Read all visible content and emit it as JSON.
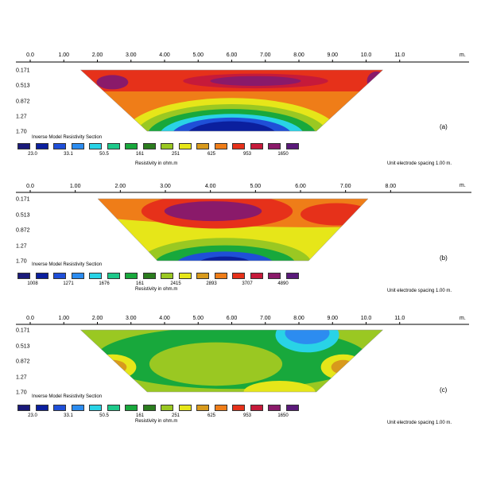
{
  "chart_data": [
    {
      "type": "heatmap",
      "panel_label": "(a)",
      "section_title": "Inverse Model Resistivity Section",
      "x_unit": "m.",
      "x_ticks": [
        "0.0",
        "1.00",
        "2.00",
        "3.00",
        "4.00",
        "5.00",
        "6.00",
        "7.00",
        "8.00",
        "9.00",
        "10.0",
        "11.0"
      ],
      "x_range": [
        0,
        12
      ],
      "section_x": [
        1.5,
        10.5
      ],
      "depth_ticks": [
        "0.171",
        "0.513",
        "0.872",
        "1.27",
        "1.70"
      ],
      "legend_values": [
        "23.0",
        "33.1",
        "50.5",
        "161",
        "251",
        "625",
        "953",
        "1650"
      ],
      "legend_caption": "Resistivity in ohm.m",
      "spacing_note": "Unit electrode spacing 1.00 m."
    },
    {
      "type": "heatmap",
      "panel_label": "(b)",
      "section_title": "Inverse Model Resistivity Section",
      "x_unit": "m.",
      "x_ticks": [
        "0.0",
        "1.00",
        "2.00",
        "3.00",
        "4.00",
        "5.00",
        "6.00",
        "7.00",
        "8.00"
      ],
      "x_range": [
        0,
        9
      ],
      "section_x": [
        1.5,
        7.5
      ],
      "depth_ticks": [
        "0.171",
        "0.513",
        "0.872",
        "1.27",
        "1.70"
      ],
      "legend_values": [
        "1008",
        "1271",
        "1676",
        "161",
        "2415",
        "2893",
        "3707",
        "4890"
      ],
      "legend_caption": "Resistivity in ohm.m",
      "spacing_note": "Unit electrode spacing 1.00 m."
    },
    {
      "type": "heatmap",
      "panel_label": "(c)",
      "section_title": "Inverse Model Resistivity Section",
      "x_unit": "m.",
      "x_ticks": [
        "0.0",
        "1.00",
        "2.00",
        "3.00",
        "4.00",
        "5.00",
        "6.00",
        "7.00",
        "8.00",
        "9.00",
        "10.0",
        "11.0"
      ],
      "x_range": [
        0,
        12
      ],
      "section_x": [
        1.5,
        10.5
      ],
      "depth_ticks": [
        "0.171",
        "0.513",
        "0.872",
        "1.27",
        "1.70"
      ],
      "legend_values": [
        "23.0",
        "33.1",
        "50.5",
        "161",
        "251",
        "625",
        "953",
        "1650"
      ],
      "legend_caption": "Resistivity in ohm.m",
      "spacing_note": "Unit electrode spacing 1.00 m."
    }
  ],
  "colors": {
    "legend_scale": [
      "#1a1a7a",
      "#0b1f9e",
      "#1f4fd8",
      "#2c8cf0",
      "#29d3e6",
      "#1ec98a",
      "#18a83c",
      "#2b7d1e",
      "#9ac822",
      "#e6e619",
      "#d89a1c",
      "#ef7d18",
      "#e6311a",
      "#c61a3a",
      "#8a1a6a",
      "#5a1a7a"
    ]
  }
}
